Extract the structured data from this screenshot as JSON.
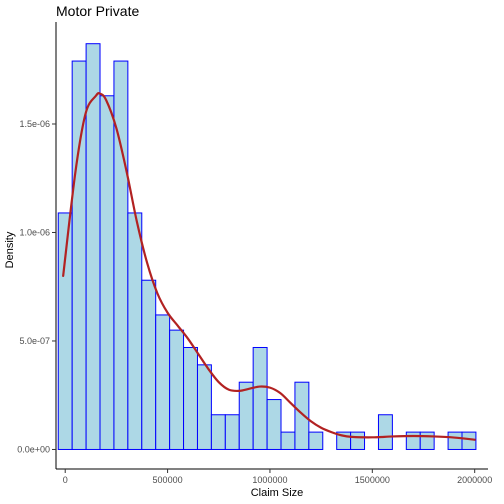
{
  "chart_data": {
    "type": "bar",
    "title": "Motor Private",
    "xlabel": "Claim Size",
    "ylabel": "Density",
    "xlim": [
      -45000,
      2065000
    ],
    "ylim": [
      -9e-08,
      1.97e-06
    ],
    "grid": false,
    "legend": "none",
    "x_ticks": [
      0,
      500000,
      1000000,
      1500000,
      2000000
    ],
    "x_tick_labels": [
      "0",
      "500000",
      "1000000",
      "1500000",
      "2000000"
    ],
    "y_ticks": [
      0,
      5e-07,
      1e-06,
      1.5e-06
    ],
    "y_tick_labels": [
      "0.0e+00",
      "5.0e-07",
      "1.0e-06",
      "1.5e-06"
    ],
    "histogram": {
      "bin_width": 68000,
      "bin_starts": [
        -34000,
        34000,
        102000,
        170000,
        238000,
        306000,
        374000,
        442000,
        510000,
        578000,
        646000,
        714000,
        782000,
        850000,
        918000,
        986000,
        1054000,
        1122000,
        1190000,
        1258000,
        1326000,
        1394000,
        1462000,
        1530000,
        1598000,
        1666000,
        1734000,
        1802000,
        1870000,
        1938000
      ],
      "values": [
        1.09e-06,
        1.79e-06,
        1.87e-06,
        1.63e-06,
        1.79e-06,
        1.09e-06,
        7.8e-07,
        6.2e-07,
        5.5e-07,
        4.7e-07,
        3.9e-07,
        1.6e-07,
        1.6e-07,
        3.1e-07,
        4.7e-07,
        2.3e-07,
        8e-08,
        3.1e-07,
        8e-08,
        0,
        8e-08,
        8e-08,
        0,
        1.6e-07,
        0,
        8e-08,
        8e-08,
        0,
        8e-08,
        8e-08
      ],
      "fill": "#add8e6",
      "stroke": "#0000ff"
    },
    "density_curve": {
      "color": "#b22222",
      "x": [
        -10000,
        50000,
        100000,
        150000,
        170000,
        200000,
        250000,
        300000,
        350000,
        400000,
        450000,
        500000,
        550000,
        600000,
        650000,
        700000,
        750000,
        800000,
        850000,
        900000,
        950000,
        1000000,
        1050000,
        1100000,
        1150000,
        1200000,
        1250000,
        1300000,
        1350000,
        1400000,
        1500000,
        1600000,
        1700000,
        1800000,
        1900000,
        2000000
      ],
      "y": [
        8e-07,
        1.28e-06,
        1.55e-06,
        1.63e-06,
        1.64e-06,
        1.61e-06,
        1.48e-06,
        1.28e-06,
        1.05e-06,
        8.6e-07,
        7.2e-07,
        6.3e-07,
        5.7e-07,
        5.1e-07,
        4.4e-07,
        3.7e-07,
        3.1e-07,
        2.75e-07,
        2.7e-07,
        2.8e-07,
        2.9e-07,
        2.85e-07,
        2.6e-07,
        2.15e-07,
        1.7e-07,
        1.3e-07,
        1e-07,
        8e-08,
        6.5e-08,
        5.8e-08,
        5.6e-08,
        6e-08,
        6.2e-08,
        6e-08,
        5.5e-08,
        4.5e-08
      ]
    }
  }
}
